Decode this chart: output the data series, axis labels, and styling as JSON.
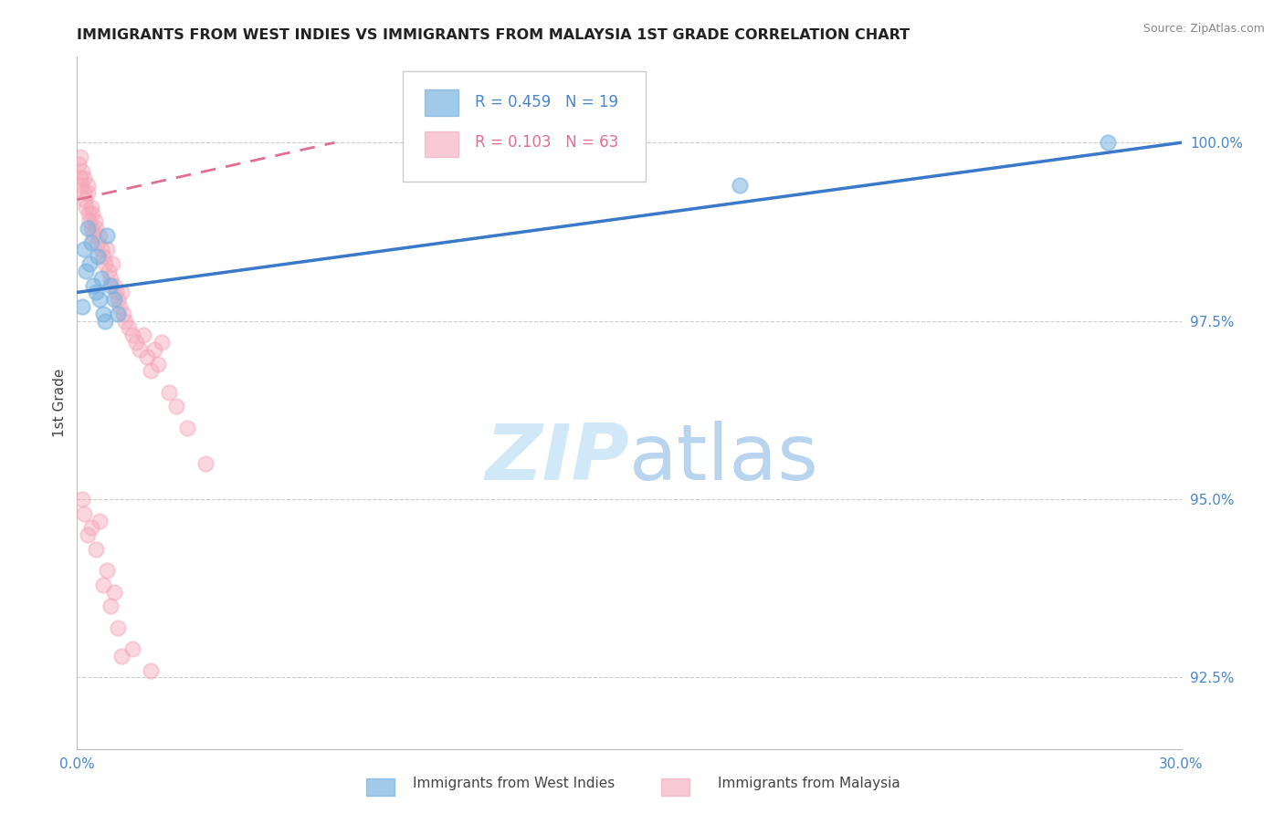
{
  "title": "IMMIGRANTS FROM WEST INDIES VS IMMIGRANTS FROM MALAYSIA 1ST GRADE CORRELATION CHART",
  "source": "Source: ZipAtlas.com",
  "ylabel": "1st Grade",
  "yticks": [
    92.5,
    95.0,
    97.5,
    100.0
  ],
  "ytick_labels": [
    "92.5%",
    "95.0%",
    "97.5%",
    "100.0%"
  ],
  "xlim": [
    0.0,
    30.0
  ],
  "ylim": [
    91.5,
    101.2
  ],
  "legend_r1": "R = 0.459",
  "legend_n1": "N = 19",
  "legend_r2": "R = 0.103",
  "legend_n2": "N = 63",
  "legend_label1": "Immigrants from West Indies",
  "legend_label2": "Immigrants from Malaysia",
  "blue_color": "#7ab3e0",
  "pink_color": "#f4a7b9",
  "blue_line_color": "#3a78c9",
  "pink_line_color": "#e07090",
  "axis_color": "#4a86c8",
  "title_color": "#222222",
  "watermark_color": "#d0e8f7",
  "blue_scatter_x": [
    0.15,
    0.2,
    0.25,
    0.3,
    0.35,
    0.4,
    0.45,
    0.5,
    0.55,
    0.6,
    0.65,
    0.7,
    0.75,
    0.8,
    0.9,
    1.0,
    1.1,
    18.0,
    28.0
  ],
  "blue_scatter_y": [
    97.7,
    98.5,
    98.2,
    98.8,
    98.3,
    98.6,
    98.0,
    97.9,
    98.4,
    97.8,
    98.1,
    97.6,
    97.5,
    98.7,
    98.0,
    97.8,
    97.6,
    99.4,
    100.0
  ],
  "pink_scatter_x": [
    0.05,
    0.08,
    0.1,
    0.12,
    0.15,
    0.18,
    0.2,
    0.22,
    0.25,
    0.28,
    0.3,
    0.32,
    0.35,
    0.38,
    0.4,
    0.42,
    0.45,
    0.48,
    0.5,
    0.55,
    0.6,
    0.65,
    0.7,
    0.75,
    0.8,
    0.85,
    0.9,
    0.95,
    1.0,
    1.05,
    1.1,
    1.15,
    1.2,
    1.25,
    1.3,
    1.4,
    1.5,
    1.6,
    1.7,
    1.8,
    1.9,
    2.0,
    2.1,
    2.2,
    2.3,
    2.5,
    2.7,
    3.0,
    3.5,
    0.15,
    0.2,
    0.3,
    0.4,
    0.5,
    0.6,
    0.7,
    0.8,
    0.9,
    1.0,
    1.1,
    1.2,
    1.5,
    2.0
  ],
  "pink_scatter_y": [
    99.7,
    99.5,
    99.8,
    99.4,
    99.6,
    99.3,
    99.5,
    99.2,
    99.1,
    99.4,
    99.3,
    99.0,
    98.9,
    99.1,
    98.8,
    99.0,
    98.7,
    98.9,
    98.8,
    98.6,
    98.7,
    98.5,
    98.4,
    98.3,
    98.5,
    98.2,
    98.1,
    98.3,
    98.0,
    97.9,
    97.8,
    97.7,
    97.9,
    97.6,
    97.5,
    97.4,
    97.3,
    97.2,
    97.1,
    97.3,
    97.0,
    96.8,
    97.1,
    96.9,
    97.2,
    96.5,
    96.3,
    96.0,
    95.5,
    95.0,
    94.8,
    94.5,
    94.6,
    94.3,
    94.7,
    93.8,
    94.0,
    93.5,
    93.7,
    93.2,
    92.8,
    92.9,
    92.6
  ],
  "blue_line_x0": 0.0,
  "blue_line_y0": 97.9,
  "blue_line_x1": 30.0,
  "blue_line_y1": 100.0,
  "pink_line_x0": 0.0,
  "pink_line_y0": 99.2,
  "pink_line_x1": 7.0,
  "pink_line_y1": 100.0
}
